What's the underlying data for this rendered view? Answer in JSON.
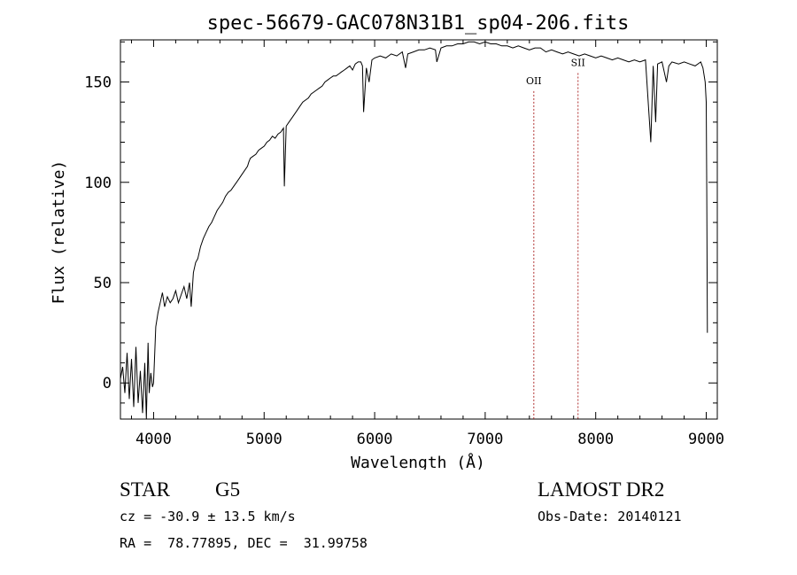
{
  "chart_data": {
    "type": "line",
    "title": "spec-56679-GAC078N31B1_sp04-206.fits",
    "xlabel": "Wavelength (Å)",
    "ylabel": "Flux (relative)",
    "xlim": [
      3700,
      9100
    ],
    "ylim": [
      -18,
      171
    ],
    "xticks": [
      4000,
      5000,
      6000,
      7000,
      8000,
      9000
    ],
    "yticks": [
      0,
      50,
      100,
      150
    ],
    "grid": false,
    "series": [
      {
        "color": "#000000",
        "x": [
          3700,
          3720,
          3740,
          3760,
          3780,
          3800,
          3820,
          3840,
          3860,
          3880,
          3900,
          3920,
          3935,
          3950,
          3960,
          3975,
          3990,
          4000,
          4020,
          4040,
          4060,
          4080,
          4100,
          4125,
          4150,
          4175,
          4200,
          4225,
          4250,
          4275,
          4300,
          4325,
          4340,
          4360,
          4380,
          4400,
          4425,
          4450,
          4475,
          4500,
          4525,
          4550,
          4575,
          4600,
          4625,
          4650,
          4675,
          4700,
          4725,
          4750,
          4775,
          4800,
          4825,
          4850,
          4861,
          4875,
          4900,
          4925,
          4950,
          4975,
          5000,
          5025,
          5050,
          5075,
          5100,
          5125,
          5150,
          5175,
          5183,
          5200,
          5225,
          5250,
          5275,
          5300,
          5325,
          5350,
          5375,
          5400,
          5425,
          5450,
          5475,
          5500,
          5525,
          5550,
          5575,
          5600,
          5625,
          5650,
          5675,
          5700,
          5725,
          5750,
          5775,
          5800,
          5825,
          5850,
          5875,
          5890,
          5900,
          5925,
          5950,
          5975,
          6000,
          6050,
          6100,
          6150,
          6200,
          6250,
          6280,
          6300,
          6350,
          6400,
          6450,
          6500,
          6550,
          6563,
          6600,
          6650,
          6700,
          6750,
          6800,
          6850,
          6900,
          6950,
          7000,
          7050,
          7100,
          7150,
          7200,
          7250,
          7300,
          7350,
          7400,
          7450,
          7500,
          7550,
          7600,
          7650,
          7700,
          7750,
          7800,
          7850,
          7900,
          7950,
          8000,
          8050,
          8100,
          8150,
          8200,
          8250,
          8300,
          8350,
          8400,
          8450,
          8498,
          8520,
          8542,
          8560,
          8600,
          8640,
          8662,
          8690,
          8750,
          8800,
          8850,
          8900,
          8950,
          8970,
          8990,
          9000,
          9005,
          9010
        ],
        "values": [
          2,
          8,
          -5,
          15,
          -8,
          12,
          -12,
          18,
          -10,
          6,
          -15,
          10,
          -20,
          20,
          -5,
          5,
          -2,
          0,
          28,
          35,
          40,
          45,
          38,
          43,
          40,
          42,
          46,
          40,
          44,
          48,
          42,
          50,
          38,
          55,
          60,
          62,
          68,
          72,
          75,
          78,
          80,
          83,
          86,
          88,
          90,
          93,
          95,
          96,
          98,
          100,
          102,
          104,
          106,
          108,
          110,
          112,
          113,
          114,
          116,
          117,
          118,
          120,
          121,
          123,
          122,
          124,
          125,
          127,
          98,
          128,
          130,
          132,
          134,
          136,
          138,
          140,
          141,
          142,
          144,
          145,
          146,
          147,
          148,
          150,
          151,
          152,
          153,
          153,
          154,
          155,
          156,
          157,
          158,
          156,
          159,
          160,
          160,
          158,
          135,
          157,
          150,
          161,
          162,
          163,
          162,
          164,
          163,
          165,
          157,
          164,
          165,
          166,
          166,
          167,
          166,
          160,
          167,
          168,
          168,
          169,
          169,
          170,
          170,
          169,
          170,
          169,
          169,
          168,
          168,
          167,
          168,
          167,
          166,
          167,
          167,
          165,
          166,
          165,
          164,
          165,
          164,
          163,
          164,
          163,
          162,
          163,
          162,
          161,
          162,
          161,
          160,
          161,
          160,
          161,
          120,
          158,
          130,
          159,
          160,
          150,
          158,
          160,
          159,
          160,
          159,
          158,
          160,
          157,
          150,
          140,
          95,
          25
        ]
      }
    ],
    "annotations": [
      {
        "label": "OII",
        "x": 7440,
        "y": 149,
        "color": "#b03030"
      },
      {
        "label": "SII",
        "x": 7840,
        "y": 158,
        "color": "#b03030"
      }
    ]
  },
  "footer": {
    "class_label": "STAR",
    "subclass": "G5",
    "cz_text": "cz = -30.9 ± 13.5 km/s",
    "radec_text": "RA =  78.77895, DEC =  31.99758",
    "survey": "LAMOST DR2",
    "obs_date_text": "Obs-Date: 20140121"
  }
}
